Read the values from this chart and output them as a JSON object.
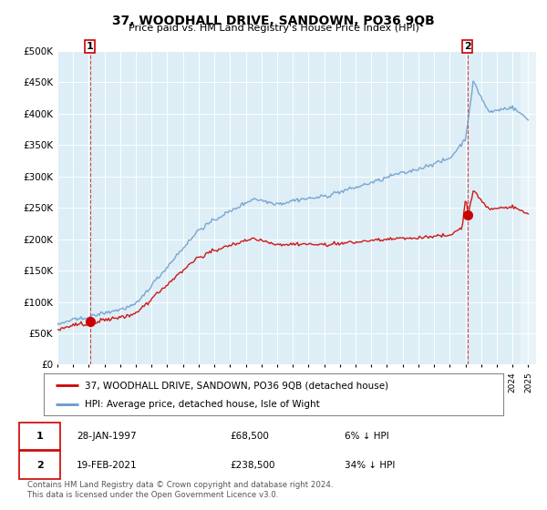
{
  "title": "37, WOODHALL DRIVE, SANDOWN, PO36 9QB",
  "subtitle": "Price paid vs. HM Land Registry's House Price Index (HPI)",
  "legend_label_red": "37, WOODHALL DRIVE, SANDOWN, PO36 9QB (detached house)",
  "legend_label_blue": "HPI: Average price, detached house, Isle of Wight",
  "transaction1_date": "28-JAN-1997",
  "transaction1_price": "£68,500",
  "transaction1_hpi": "6% ↓ HPI",
  "transaction2_date": "19-FEB-2021",
  "transaction2_price": "£238,500",
  "transaction2_hpi": "34% ↓ HPI",
  "footer": "Contains HM Land Registry data © Crown copyright and database right 2024.\nThis data is licensed under the Open Government Licence v3.0.",
  "plot_bg": "#ddeef6",
  "red_color": "#cc0000",
  "blue_color": "#6699cc",
  "grid_color": "#ffffff",
  "ylim": [
    0,
    500000
  ],
  "yticks": [
    0,
    50000,
    100000,
    150000,
    200000,
    250000,
    300000,
    350000,
    400000,
    450000,
    500000
  ],
  "marker1_x": 1997.08,
  "marker1_y": 68500,
  "marker2_x": 2021.13,
  "marker2_y": 238500,
  "xmin": 1995,
  "xmax": 2025.5
}
